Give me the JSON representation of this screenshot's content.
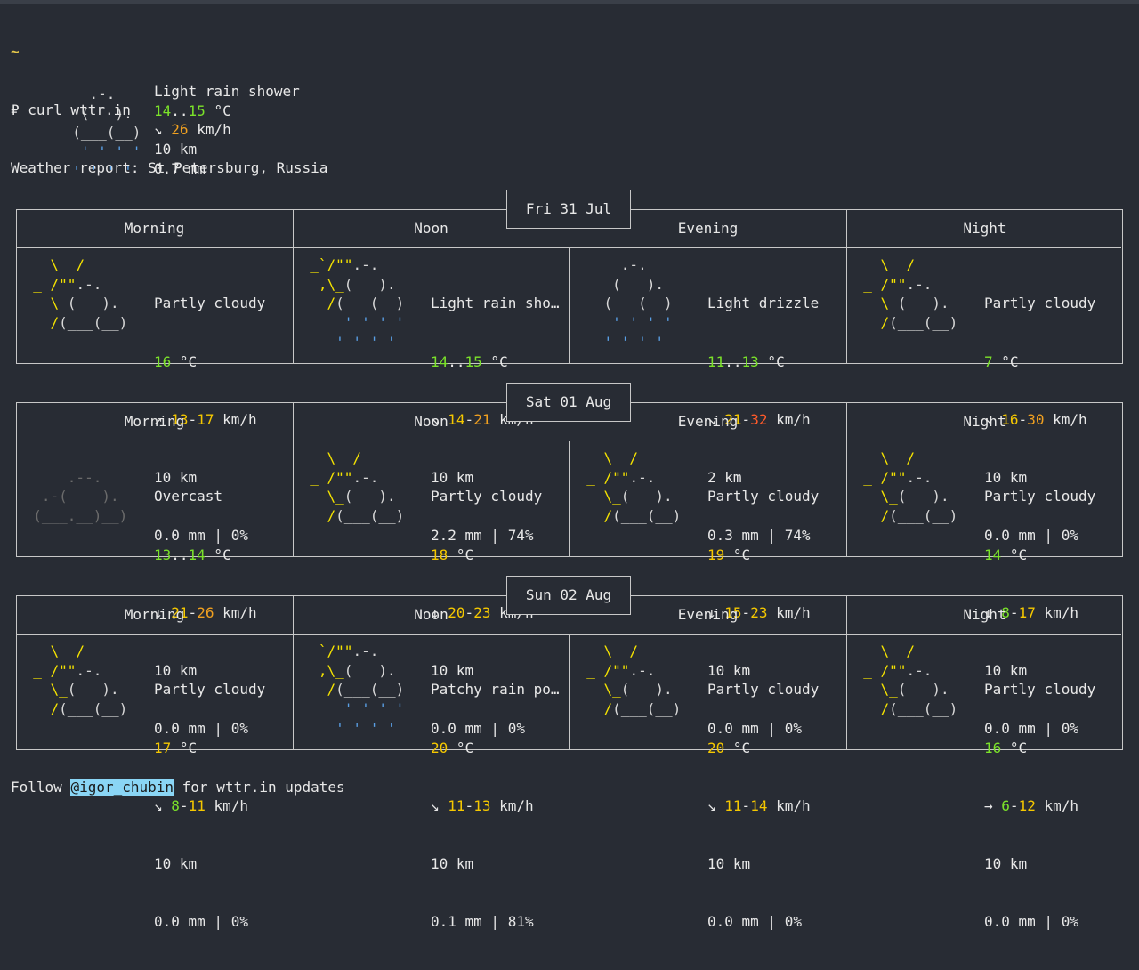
{
  "terminal": {
    "tilde": "~",
    "prompt_line": "₽ curl wttr.in",
    "report_title": "Weather report: St Petersburg, Russia"
  },
  "current": {
    "desc": "Light rain shower",
    "temp_lo": "14",
    "temp_hi": "15",
    "temp_unit": "°C",
    "wind_arrow": "↘",
    "wind": "26",
    "wind_unit": "km/h",
    "visibility": "10 km",
    "precip": "0.7 mm"
  },
  "days": [
    {
      "date": "Fri 31 Jul",
      "periods": [
        {
          "name": "Morning",
          "desc": "Partly cloudy",
          "temp": "16",
          "temp2": "",
          "wind_arrow": "↗",
          "w1": "13",
          "w2": "17",
          "vis": "10 km",
          "precip": "0.0 mm | 0%"
        },
        {
          "name": "Noon",
          "desc": "Light rain sho…",
          "temp": "14",
          "temp2": "15",
          "wind_arrow": "↘",
          "w1": "14",
          "w2": "21",
          "vis": "10 km",
          "precip": "2.2 mm | 74%"
        },
        {
          "name": "Evening",
          "desc": "Light drizzle",
          "temp": "11",
          "temp2": "13",
          "wind_arrow": "↘",
          "w1": "21",
          "w2": "32",
          "vis": "2 km",
          "precip": "0.3 mm | 74%"
        },
        {
          "name": "Night",
          "desc": "Partly cloudy",
          "temp": "7",
          "temp2": "",
          "wind_arrow": "↘",
          "w1": "16",
          "w2": "30",
          "vis": "10 km",
          "precip": "0.0 mm | 0%"
        }
      ]
    },
    {
      "date": "Sat 01 Aug",
      "periods": [
        {
          "name": "Morning",
          "desc": "Overcast",
          "temp": "13",
          "temp2": "14",
          "wind_arrow": "↓",
          "w1": "21",
          "w2": "26",
          "vis": "10 km",
          "precip": "0.0 mm | 0%"
        },
        {
          "name": "Noon",
          "desc": "Partly cloudy",
          "temp": "18",
          "temp2": "",
          "wind_arrow": "↓",
          "w1": "20",
          "w2": "23",
          "vis": "10 km",
          "precip": "0.0 mm | 0%"
        },
        {
          "name": "Evening",
          "desc": "Partly cloudy",
          "temp": "19",
          "temp2": "",
          "wind_arrow": "↓",
          "w1": "15",
          "w2": "23",
          "vis": "10 km",
          "precip": "0.0 mm | 0%"
        },
        {
          "name": "Night",
          "desc": "Partly cloudy",
          "temp": "14",
          "temp2": "",
          "wind_arrow": "↓",
          "w1": "8",
          "w2": "17",
          "vis": "10 km",
          "precip": "0.0 mm | 0%"
        }
      ]
    },
    {
      "date": "Sun 02 Aug",
      "periods": [
        {
          "name": "Morning",
          "desc": "Partly cloudy",
          "temp": "17",
          "temp2": "",
          "wind_arrow": "↘",
          "w1": "8",
          "w2": "11",
          "vis": "10 km",
          "precip": "0.0 mm | 0%"
        },
        {
          "name": "Noon",
          "desc": "Patchy rain po…",
          "temp": "20",
          "temp2": "",
          "wind_arrow": "↘",
          "w1": "11",
          "w2": "13",
          "vis": "10 km",
          "precip": "0.1 mm | 81%"
        },
        {
          "name": "Evening",
          "desc": "Partly cloudy",
          "temp": "20",
          "temp2": "",
          "wind_arrow": "↘",
          "w1": "11",
          "w2": "14",
          "vis": "10 km",
          "precip": "0.0 mm | 0%"
        },
        {
          "name": "Night",
          "desc": "Partly cloudy",
          "temp": "16",
          "temp2": "",
          "wind_arrow": "→",
          "w1": "6",
          "w2": "12",
          "vis": "10 km",
          "precip": "0.0 mm | 0%"
        }
      ]
    }
  ],
  "footer": {
    "prefix": "Follow ",
    "handle": "@igor_chubin",
    "suffix": " for wttr.in updates"
  }
}
